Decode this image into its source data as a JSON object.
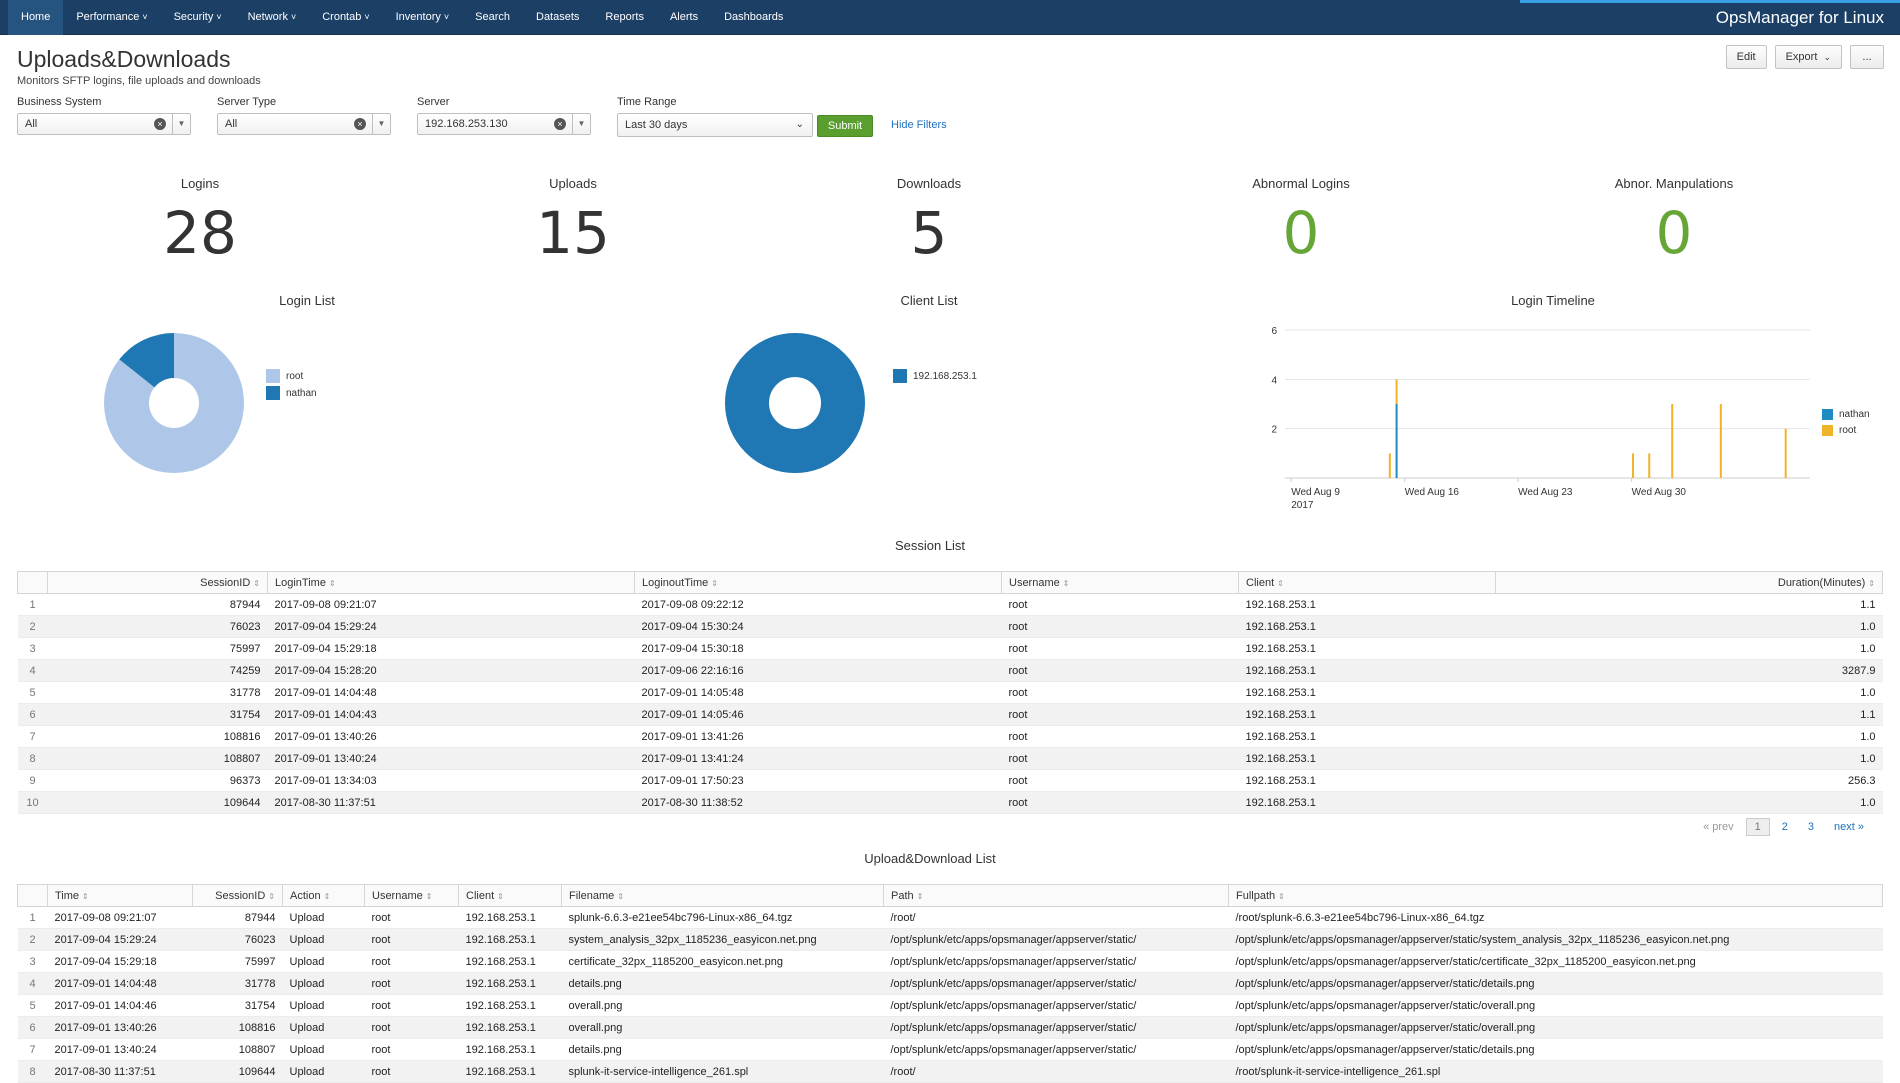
{
  "nav": {
    "items": [
      {
        "label": "Home",
        "dropdown": false
      },
      {
        "label": "Performance",
        "dropdown": true
      },
      {
        "label": "Security",
        "dropdown": true
      },
      {
        "label": "Network",
        "dropdown": true
      },
      {
        "label": "Crontab",
        "dropdown": true
      },
      {
        "label": "Inventory",
        "dropdown": true
      },
      {
        "label": "Search",
        "dropdown": false
      },
      {
        "label": "Datasets",
        "dropdown": false
      },
      {
        "label": "Reports",
        "dropdown": false
      },
      {
        "label": "Alerts",
        "dropdown": false
      },
      {
        "label": "Dashboards",
        "dropdown": false
      }
    ],
    "app_title": "OpsManager for Linux"
  },
  "header": {
    "title": "Uploads&Downloads",
    "description": "Monitors SFTP logins, file uploads and downloads",
    "edit_label": "Edit",
    "export_label": "Export",
    "more_label": "..."
  },
  "filters": {
    "business_system": {
      "label": "Business System",
      "value": "All"
    },
    "server_type": {
      "label": "Server Type",
      "value": "All"
    },
    "server": {
      "label": "Server",
      "value": "192.168.253.130"
    },
    "time_range": {
      "label": "Time Range",
      "value": "Last 30 days"
    },
    "submit_label": "Submit",
    "hide_filters_label": "Hide Filters"
  },
  "single_values": {
    "logins": {
      "title": "Logins",
      "value": "28"
    },
    "uploads": {
      "title": "Uploads",
      "value": "15"
    },
    "downloads": {
      "title": "Downloads",
      "value": "5"
    },
    "abnormal_logins": {
      "title": "Abnormal Logins",
      "value": "0"
    },
    "abnor_manipulations": {
      "title": "Abnor. Manpulations",
      "value": "0"
    }
  },
  "colors": {
    "nav_bg": "#1c3f66",
    "root_light_blue": "#aec7e8",
    "nathan_blue": "#1f77b4",
    "timeline_nathan": "#1e8bc3",
    "timeline_root": "#f0b428",
    "green_value": "#65a637"
  },
  "chart_data": [
    {
      "type": "pie",
      "title": "Login List",
      "categories": [
        "root",
        "nathan"
      ],
      "values": [
        24,
        4
      ],
      "colors": [
        "#aec7e8",
        "#1f77b4"
      ],
      "donut": true,
      "legend_position": "right"
    },
    {
      "type": "pie",
      "title": "Client List",
      "categories": [
        "192.168.253.1"
      ],
      "values": [
        28
      ],
      "colors": [
        "#1f77b4"
      ],
      "donut": true,
      "legend_position": "right"
    },
    {
      "type": "bar",
      "title": "Login Timeline",
      "x_type": "date",
      "xlim": [
        "2017-08-08",
        "2017-09-10"
      ],
      "ylim": [
        0,
        6
      ],
      "yticks": [
        2,
        4,
        6
      ],
      "x_tick_labels": [
        {
          "date": "2017-08-09",
          "label": "Wed Aug 9",
          "sublabel": "2017"
        },
        {
          "date": "2017-08-16",
          "label": "Wed Aug 16",
          "sublabel": ""
        },
        {
          "date": "2017-08-23",
          "label": "Wed Aug 23",
          "sublabel": ""
        },
        {
          "date": "2017-08-30",
          "label": "Wed Aug 30",
          "sublabel": ""
        }
      ],
      "stacked": true,
      "series": [
        {
          "name": "nathan",
          "color": "#1e8bc3",
          "points": [
            {
              "x": "2017-08-15T12:00",
              "y": 3
            }
          ]
        },
        {
          "name": "root",
          "color": "#f0b428",
          "points": [
            {
              "x": "2017-08-15T02:00",
              "y": 1
            },
            {
              "x": "2017-08-15T12:00",
              "y": 1
            },
            {
              "x": "2017-08-30T02:00",
              "y": 1
            },
            {
              "x": "2017-08-31T02:00",
              "y": 1
            },
            {
              "x": "2017-09-01T12:00",
              "y": 3
            },
            {
              "x": "2017-09-04T12:00",
              "y": 3
            },
            {
              "x": "2017-09-08T12:00",
              "y": 2
            }
          ]
        }
      ],
      "grid": true,
      "legend_position": "right"
    }
  ],
  "panels": {
    "login_list_title": "Login List",
    "client_list_title": "Client List",
    "login_timeline_title": "Login Timeline",
    "session_list_title": "Session List",
    "upload_download_title": "Upload&Download List"
  },
  "session_table": {
    "headers": [
      "SessionID",
      "LoginTime",
      "LoginoutTime",
      "Username",
      "Client",
      "Duration(Minutes)"
    ],
    "rows": [
      [
        "1",
        "87944",
        "2017-09-08 09:21:07",
        "2017-09-08 09:22:12",
        "root",
        "192.168.253.1",
        "1.1"
      ],
      [
        "2",
        "76023",
        "2017-09-04 15:29:24",
        "2017-09-04 15:30:24",
        "root",
        "192.168.253.1",
        "1.0"
      ],
      [
        "3",
        "75997",
        "2017-09-04 15:29:18",
        "2017-09-04 15:30:18",
        "root",
        "192.168.253.1",
        "1.0"
      ],
      [
        "4",
        "74259",
        "2017-09-04 15:28:20",
        "2017-09-06 22:16:16",
        "root",
        "192.168.253.1",
        "3287.9"
      ],
      [
        "5",
        "31778",
        "2017-09-01 14:04:48",
        "2017-09-01 14:05:48",
        "root",
        "192.168.253.1",
        "1.0"
      ],
      [
        "6",
        "31754",
        "2017-09-01 14:04:43",
        "2017-09-01 14:05:46",
        "root",
        "192.168.253.1",
        "1.1"
      ],
      [
        "7",
        "108816",
        "2017-09-01 13:40:26",
        "2017-09-01 13:41:26",
        "root",
        "192.168.253.1",
        "1.0"
      ],
      [
        "8",
        "108807",
        "2017-09-01 13:40:24",
        "2017-09-01 13:41:24",
        "root",
        "192.168.253.1",
        "1.0"
      ],
      [
        "9",
        "96373",
        "2017-09-01 13:34:03",
        "2017-09-01 17:50:23",
        "root",
        "192.168.253.1",
        "256.3"
      ],
      [
        "10",
        "109644",
        "2017-08-30 11:37:51",
        "2017-08-30 11:38:52",
        "root",
        "192.168.253.1",
        "1.0"
      ]
    ],
    "pager": {
      "prev": "« prev",
      "pages": [
        "1",
        "2",
        "3"
      ],
      "next": "next »"
    }
  },
  "upload_table": {
    "headers": [
      "Time",
      "SessionID",
      "Action",
      "Username",
      "Client",
      "Filename",
      "Path",
      "Fullpath"
    ],
    "rows": [
      [
        "1",
        "2017-09-08 09:21:07",
        "87944",
        "Upload",
        "root",
        "192.168.253.1",
        "splunk-6.6.3-e21ee54bc796-Linux-x86_64.tgz",
        "/root/",
        "/root/splunk-6.6.3-e21ee54bc796-Linux-x86_64.tgz"
      ],
      [
        "2",
        "2017-09-04 15:29:24",
        "76023",
        "Upload",
        "root",
        "192.168.253.1",
        "system_analysis_32px_1185236_easyicon.net.png",
        "/opt/splunk/etc/apps/opsmanager/appserver/static/",
        "/opt/splunk/etc/apps/opsmanager/appserver/static/system_analysis_32px_1185236_easyicon.net.png"
      ],
      [
        "3",
        "2017-09-04 15:29:18",
        "75997",
        "Upload",
        "root",
        "192.168.253.1",
        "certificate_32px_1185200_easyicon.net.png",
        "/opt/splunk/etc/apps/opsmanager/appserver/static/",
        "/opt/splunk/etc/apps/opsmanager/appserver/static/certificate_32px_1185200_easyicon.net.png"
      ],
      [
        "4",
        "2017-09-01 14:04:48",
        "31778",
        "Upload",
        "root",
        "192.168.253.1",
        "details.png",
        "/opt/splunk/etc/apps/opsmanager/appserver/static/",
        "/opt/splunk/etc/apps/opsmanager/appserver/static/details.png"
      ],
      [
        "5",
        "2017-09-01 14:04:46",
        "31754",
        "Upload",
        "root",
        "192.168.253.1",
        "overall.png",
        "/opt/splunk/etc/apps/opsmanager/appserver/static/",
        "/opt/splunk/etc/apps/opsmanager/appserver/static/overall.png"
      ],
      [
        "6",
        "2017-09-01 13:40:26",
        "108816",
        "Upload",
        "root",
        "192.168.253.1",
        "overall.png",
        "/opt/splunk/etc/apps/opsmanager/appserver/static/",
        "/opt/splunk/etc/apps/opsmanager/appserver/static/overall.png"
      ],
      [
        "7",
        "2017-09-01 13:40:24",
        "108807",
        "Upload",
        "root",
        "192.168.253.1",
        "details.png",
        "/opt/splunk/etc/apps/opsmanager/appserver/static/",
        "/opt/splunk/etc/apps/opsmanager/appserver/static/details.png"
      ],
      [
        "8",
        "2017-08-30 11:37:51",
        "109644",
        "Upload",
        "root",
        "192.168.253.1",
        "splunk-it-service-intelligence_261.spl",
        "/root/",
        "/root/splunk-it-service-intelligence_261.spl"
      ]
    ]
  }
}
